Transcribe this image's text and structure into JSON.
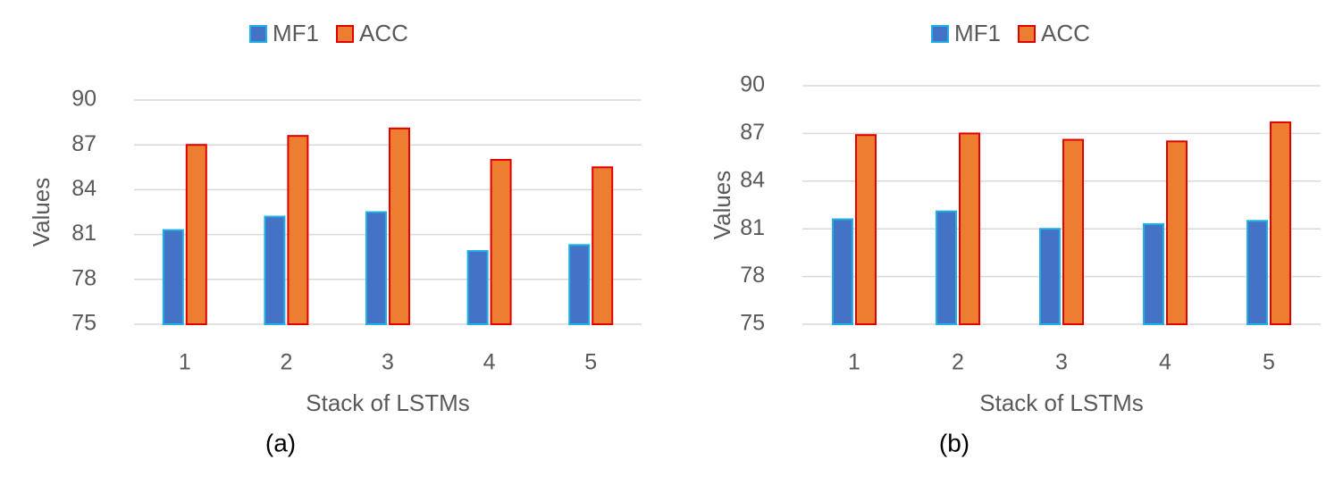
{
  "chart_data": [
    {
      "type": "bar",
      "caption": "(a)",
      "xlabel": "Stack of LSTMs",
      "ylabel": "Values",
      "categories": [
        "1",
        "2",
        "3",
        "4",
        "5"
      ],
      "series": [
        {
          "name": "MF1",
          "color": "#4472c4",
          "edgecolor": "#1fb0e6",
          "values": [
            81.3,
            82.2,
            82.5,
            79.9,
            80.3
          ]
        },
        {
          "name": "ACC",
          "color": "#ed7d31",
          "edgecolor": "#e00000",
          "values": [
            87.0,
            87.6,
            88.1,
            86.0,
            85.5
          ]
        }
      ],
      "ylim": [
        75,
        90
      ],
      "yticks": [
        75,
        78,
        81,
        84,
        87,
        90
      ],
      "grid": true,
      "legend": "top"
    },
    {
      "type": "bar",
      "caption": "(b)",
      "xlabel": "Stack of LSTMs",
      "ylabel": "Values",
      "categories": [
        "1",
        "2",
        "3",
        "4",
        "5"
      ],
      "series": [
        {
          "name": "MF1",
          "color": "#4472c4",
          "edgecolor": "#1fb0e6",
          "values": [
            81.6,
            82.1,
            81.0,
            81.3,
            81.5
          ]
        },
        {
          "name": "ACC",
          "color": "#ed7d31",
          "edgecolor": "#e00000",
          "values": [
            86.9,
            87.0,
            86.6,
            86.5,
            87.7
          ]
        }
      ],
      "ylim": [
        75,
        90
      ],
      "yticks": [
        75,
        78,
        81,
        84,
        87,
        90
      ],
      "grid": true,
      "legend": "top"
    }
  ]
}
